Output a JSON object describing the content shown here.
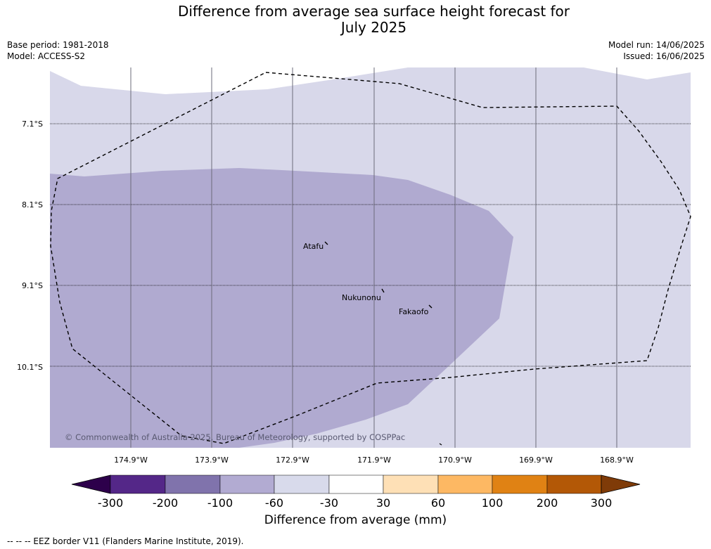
{
  "title_line1": "Difference from average sea surface height forecast for",
  "title_line2": "July 2025",
  "meta": {
    "base_period": "Base period: 1981-2018",
    "model": "Model: ACCESS-S2",
    "model_run": "Model run: 14/06/2025",
    "issued": "Issued: 16/06/2025"
  },
  "map": {
    "latitudes": [
      "7.1°S",
      "8.1°S",
      "9.1°S",
      "10.1°S"
    ],
    "longitudes": [
      "174.9°W",
      "173.9°W",
      "172.9°W",
      "171.9°W",
      "170.9°W",
      "169.9°W",
      "168.9°W"
    ],
    "places": [
      "Atafu",
      "Nukunonu",
      "Fakaofo"
    ],
    "copyright": "© Commonwealth of Australia 2025, Bureau of Meteorology, supported by COSPPac",
    "colors": {
      "light_band": "#d8d8ea",
      "medium_band": "#b0aad0"
    }
  },
  "colorbar": {
    "title": "Difference from average (mm)",
    "ticks": [
      "-300",
      "-200",
      "-100",
      "-60",
      "-30",
      "30",
      "60",
      "100",
      "200",
      "300"
    ],
    "colors": [
      "#2d004b",
      "#542788",
      "#8073ac",
      "#b2abd2",
      "#d8daeb",
      "#ffffff",
      "#fee0b6",
      "#fdb863",
      "#e08214",
      "#b35806",
      "#7f3b08"
    ]
  },
  "footnote": "--  --  -- EEZ border V11 (Flanders Marine Institute, 2019)."
}
